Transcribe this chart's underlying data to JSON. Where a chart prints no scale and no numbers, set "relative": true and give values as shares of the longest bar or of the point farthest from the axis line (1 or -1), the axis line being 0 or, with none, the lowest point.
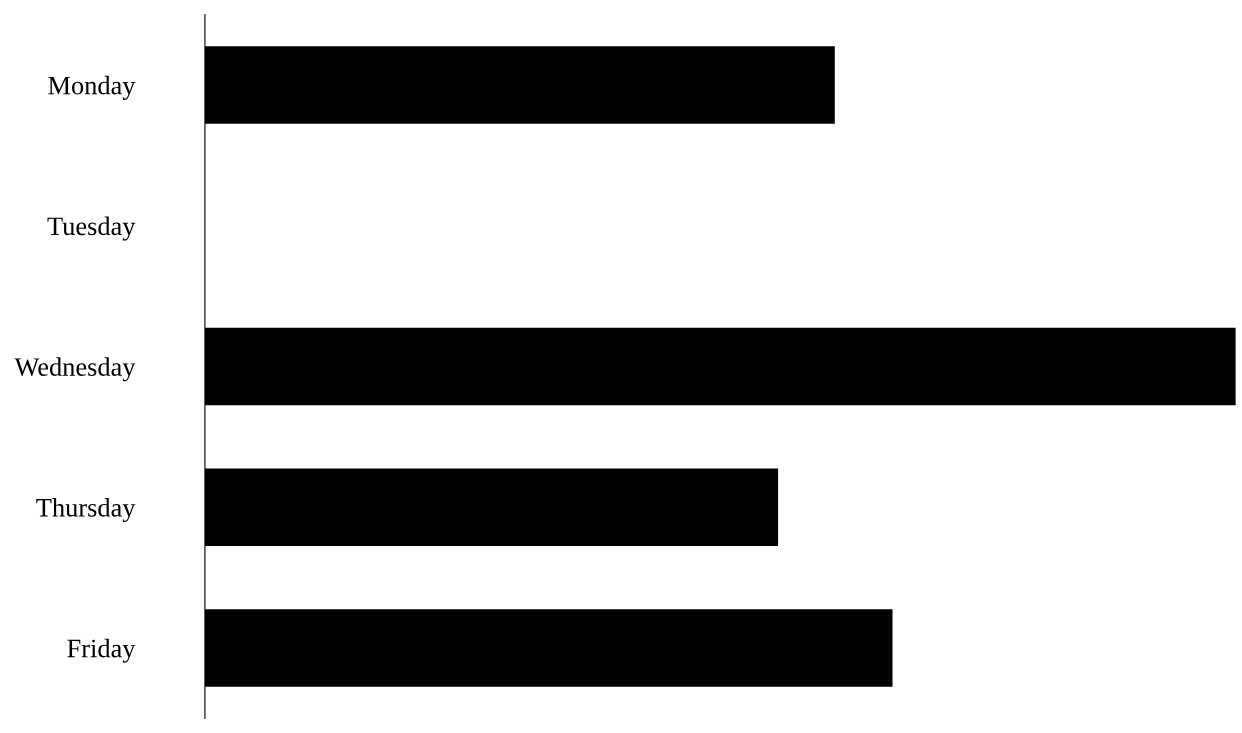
{
  "chart_data": {
    "type": "bar",
    "orientation": "horizontal",
    "relative": true,
    "categories": [
      "Monday",
      "Tuesday",
      "Wednesday",
      "Thursday",
      "Friday"
    ],
    "values": [
      0.611,
      0,
      1,
      0.556,
      0.667
    ],
    "color": "#000000"
  }
}
